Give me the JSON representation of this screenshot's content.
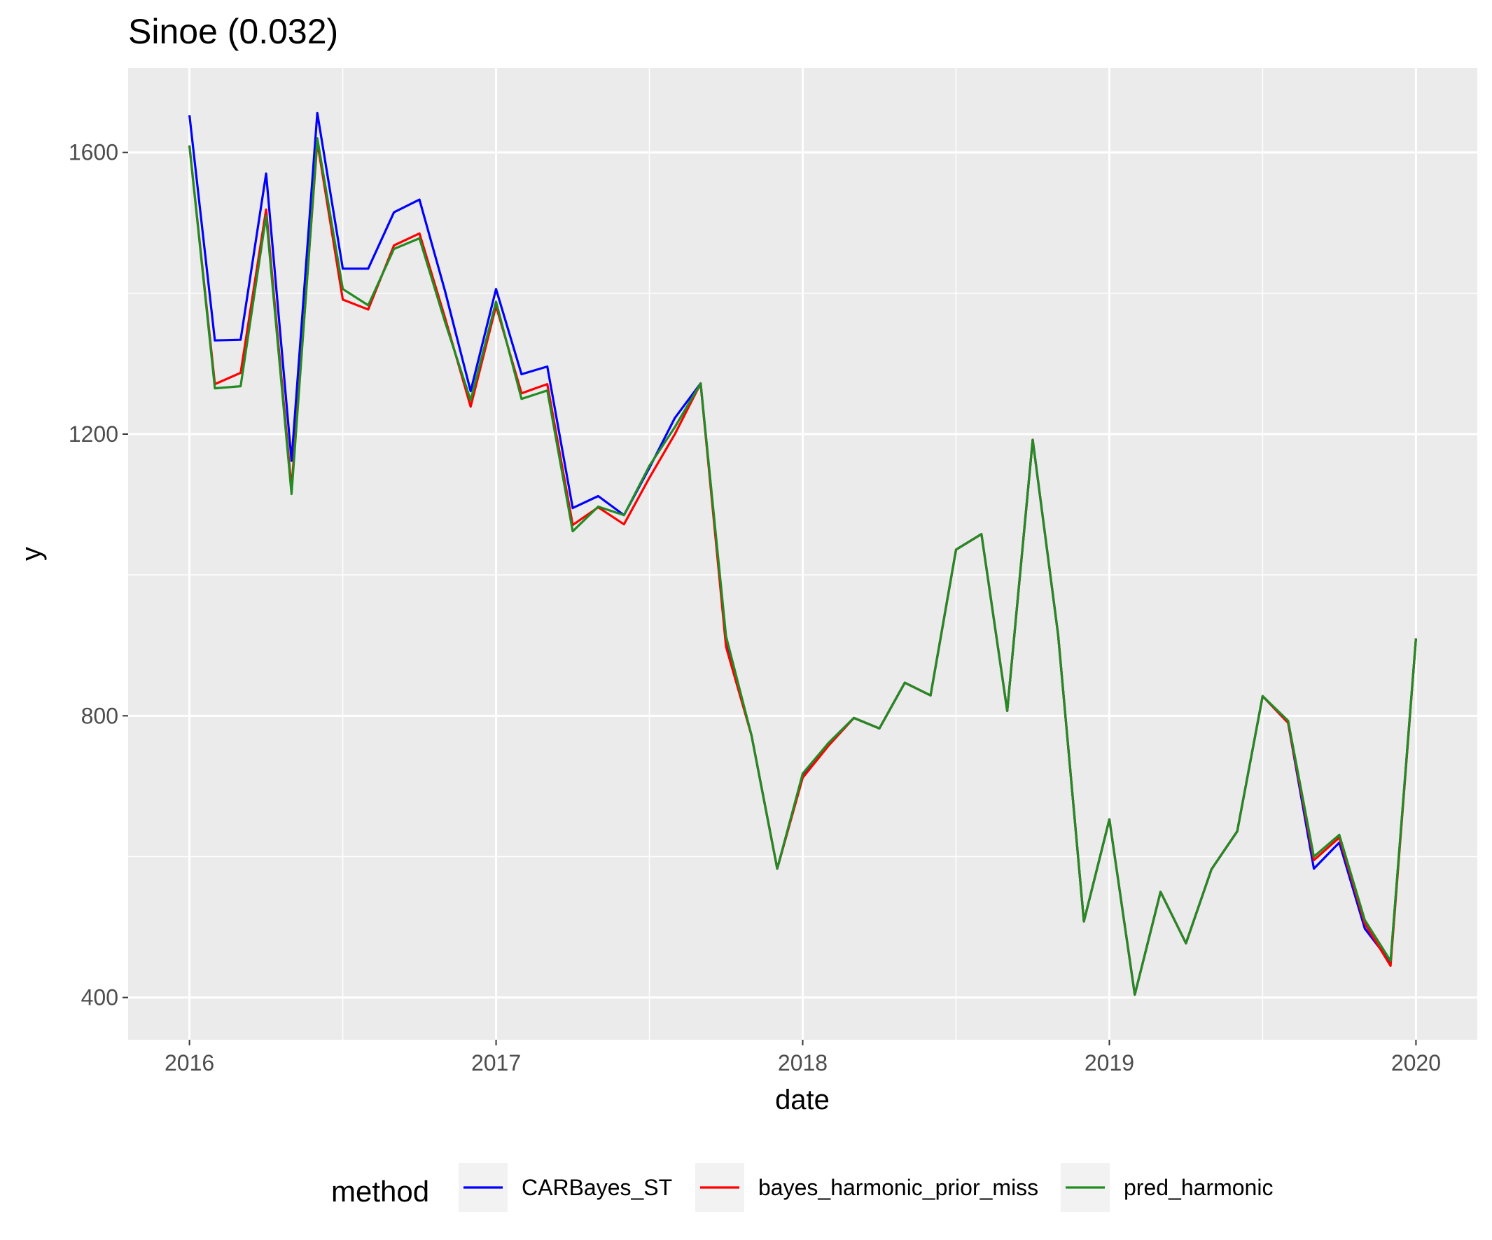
{
  "chart_data": {
    "type": "line",
    "title": "Sinoe (0.032)",
    "xlabel": "date",
    "ylabel": "y",
    "x_ticks": [
      2016,
      2017,
      2018,
      2019,
      2020
    ],
    "y_ticks": [
      400,
      800,
      1200,
      1600
    ],
    "xlim": [
      2015.8,
      2020.2
    ],
    "ylim": [
      340,
      1720
    ],
    "grid": true,
    "legend": {
      "title": "method",
      "position": "bottom"
    },
    "x": [
      2016.0,
      2016.083,
      2016.167,
      2016.25,
      2016.333,
      2016.417,
      2016.5,
      2016.583,
      2016.667,
      2016.75,
      2016.833,
      2016.917,
      2017.0,
      2017.083,
      2017.167,
      2017.25,
      2017.333,
      2017.417,
      2017.5,
      2017.583,
      2017.667,
      2017.75,
      2017.833,
      2017.917,
      2018.0,
      2018.083,
      2018.167,
      2018.25,
      2018.333,
      2018.417,
      2018.5,
      2018.583,
      2018.667,
      2018.75,
      2018.833,
      2018.917,
      2019.0,
      2019.083,
      2019.167,
      2019.25,
      2019.333,
      2019.417,
      2019.5,
      2019.583,
      2019.667,
      2019.75,
      2019.833,
      2019.917,
      2020.0
    ],
    "series": [
      {
        "name": "CARBayes_ST",
        "color": "#0000ff",
        "values": [
          1653,
          1333,
          1334,
          1570,
          1162,
          1656,
          1435,
          1435,
          1515,
          1533,
          1404,
          1261,
          1406,
          1285,
          1296,
          1095,
          1112,
          1085,
          1152,
          1223,
          1272,
          908,
          772,
          583,
          715,
          761,
          797,
          782,
          847,
          829,
          1036,
          1058,
          807,
          1192,
          915,
          508,
          653,
          404,
          550,
          477,
          582,
          636,
          828,
          790,
          583,
          620,
          498,
          450,
          910
        ]
      },
      {
        "name": "bayes_harmonic_prior_miss",
        "color": "#ff0000",
        "values": [
          1609,
          1271,
          1287,
          1519,
          1123,
          1615,
          1391,
          1377,
          1468,
          1485,
          1366,
          1239,
          1382,
          1258,
          1271,
          1071,
          1096,
          1072,
          1138,
          1200,
          1272,
          898,
          772,
          583,
          712,
          757,
          797,
          782,
          847,
          829,
          1036,
          1058,
          807,
          1192,
          915,
          508,
          653,
          404,
          550,
          477,
          582,
          636,
          828,
          790,
          595,
          627,
          505,
          445,
          910
        ]
      },
      {
        "name": "pred_harmonic",
        "color": "#228b22",
        "values": [
          1610,
          1265,
          1268,
          1510,
          1115,
          1620,
          1406,
          1383,
          1463,
          1478,
          1360,
          1248,
          1388,
          1250,
          1262,
          1062,
          1097,
          1085,
          1155,
          1210,
          1272,
          913,
          772,
          583,
          718,
          761,
          797,
          782,
          847,
          829,
          1036,
          1058,
          807,
          1192,
          915,
          508,
          653,
          404,
          550,
          477,
          582,
          636,
          828,
          793,
          600,
          631,
          510,
          452,
          910
        ]
      }
    ]
  }
}
